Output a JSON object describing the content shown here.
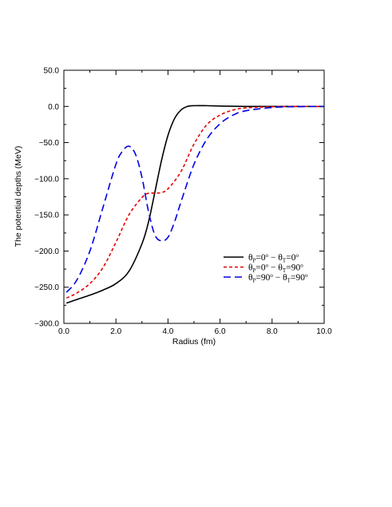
{
  "chart_data": {
    "type": "line",
    "title": "",
    "xlabel": "Radius (fm)",
    "ylabel": "The potential depths (MeV)",
    "xlim": [
      0.0,
      10.0
    ],
    "ylim": [
      -300.0,
      50.0
    ],
    "x_ticks": [
      "0.0",
      "2.0",
      "4.0",
      "6.0",
      "8.0",
      "10.0"
    ],
    "y_ticks": [
      "50.0",
      "0.0",
      "-50.0",
      "-100.0",
      "-150.0",
      "-200.0",
      "-250.0",
      "-300.0"
    ],
    "grid": false,
    "legend_position": "right",
    "series": [
      {
        "name": "θP=0° − θT=0°",
        "legend_parts": [
          "θ",
          "P",
          "=0",
          "o",
          " − θ",
          "T",
          "=0",
          "o"
        ],
        "color": "#000000",
        "style": "solid",
        "x": [
          0.1,
          0.5,
          1.0,
          1.5,
          2.0,
          2.5,
          3.0,
          3.25,
          3.5,
          3.75,
          4.0,
          4.25,
          4.5,
          4.75,
          5.0,
          5.5,
          6.0,
          7.0,
          8.0,
          9.0,
          10.0
        ],
        "y": [
          -272,
          -267,
          -261,
          -254,
          -245,
          -228,
          -190,
          -160,
          -118,
          -75,
          -40,
          -17,
          -5,
          0,
          1,
          1,
          0.5,
          0,
          0,
          0,
          0
        ]
      },
      {
        "name": "θP=0° − θT=90°",
        "legend_parts": [
          "θ",
          "P",
          "=0",
          "o",
          " − θ",
          "T",
          "=90",
          "o"
        ],
        "color": "#e60000",
        "style": "dashed",
        "x": [
          0.1,
          0.5,
          1.0,
          1.5,
          2.0,
          2.5,
          3.0,
          3.25,
          3.5,
          3.75,
          4.0,
          4.5,
          5.0,
          5.5,
          6.0,
          6.5,
          7.0,
          8.0,
          9.0,
          10.0
        ],
        "y": [
          -265,
          -258,
          -245,
          -223,
          -188,
          -150,
          -126,
          -120,
          -120,
          -119,
          -114,
          -90,
          -52,
          -25,
          -12,
          -5,
          -2,
          -0.5,
          0,
          0
        ]
      },
      {
        "name": "θP=90° − θT=90°",
        "legend_parts": [
          "θ",
          "P",
          "=90",
          "o",
          " − θ",
          "T",
          "=90",
          "o"
        ],
        "color": "#0000e6",
        "style": "longdash",
        "x": [
          0.1,
          0.5,
          1.0,
          1.5,
          2.0,
          2.25,
          2.5,
          2.75,
          3.0,
          3.25,
          3.5,
          3.75,
          4.0,
          4.25,
          4.5,
          5.0,
          5.5,
          6.0,
          6.5,
          7.0,
          8.0,
          9.0,
          10.0
        ],
        "y": [
          -257,
          -240,
          -200,
          -140,
          -80,
          -62,
          -55,
          -66,
          -98,
          -145,
          -178,
          -186,
          -181,
          -160,
          -132,
          -80,
          -45,
          -24,
          -12,
          -6,
          -1.5,
          -0.3,
          0
        ]
      }
    ]
  }
}
